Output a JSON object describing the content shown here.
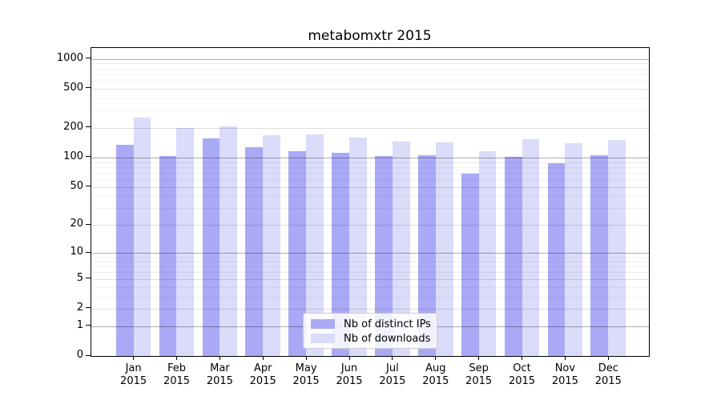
{
  "title": "metabomxtr 2015",
  "chart_data": {
    "type": "bar",
    "title": "metabomxtr 2015",
    "categories": [
      "Jan",
      "Feb",
      "Mar",
      "Apr",
      "May",
      "Jun",
      "Jul",
      "Aug",
      "Sep",
      "Oct",
      "Nov",
      "Dec"
    ],
    "category_year_label": "2015",
    "series": [
      {
        "name": "Nb of distinct IPs",
        "color": "#a9a9f6",
        "values": [
          136,
          104,
          156,
          128,
          116,
          111,
          104,
          106,
          69,
          101,
          88,
          106
        ]
      },
      {
        "name": "Nb of downloads",
        "color": "#dbdbfa",
        "values": [
          256,
          198,
          206,
          169,
          172,
          160,
          145,
          143,
          115,
          153,
          139,
          150
        ]
      }
    ],
    "xlabel": "",
    "ylabel": "",
    "y_axis": {
      "scale": "log10(value+1)",
      "ticks": [
        0,
        1,
        2,
        5,
        10,
        20,
        50,
        100,
        200,
        500,
        1000
      ],
      "gridlines_major": [
        1,
        10,
        100,
        1000
      ],
      "gridlines_mid": [
        2,
        5,
        20,
        50,
        200,
        500
      ],
      "gridlines_minor": [
        3,
        4,
        6,
        7,
        8,
        9,
        30,
        40,
        60,
        70,
        80,
        90,
        300,
        400,
        600,
        700,
        800,
        900
      ]
    },
    "legend_position": "lower center",
    "grid": "on, drawn over bars"
  },
  "legend": {
    "items": [
      {
        "label": "Nb of distinct IPs"
      },
      {
        "label": "Nb of downloads"
      }
    ]
  }
}
